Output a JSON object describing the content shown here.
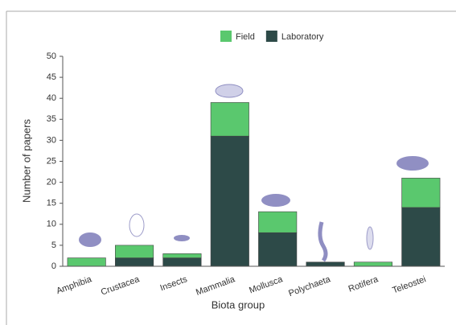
{
  "chart_data": {
    "type": "stacked_bar",
    "categories": [
      "Amphibia",
      "Crustacea",
      "Insects",
      "Mammalia",
      "Mollusca",
      "Polychaeta",
      "Rotifera",
      "Teleostei"
    ],
    "series": [
      {
        "name": "Field",
        "color": "#5ac86e",
        "values": [
          2,
          3,
          1,
          8,
          5,
          0,
          1,
          7
        ]
      },
      {
        "name": "Laboratory",
        "color": "#2d4a48",
        "values": [
          0,
          2,
          2,
          31,
          8,
          1,
          0,
          14
        ]
      }
    ],
    "stack_order": [
      "Laboratory",
      "Field"
    ],
    "x_label": "Biota group",
    "y_label": "Number of papers",
    "ylim": [
      0,
      50
    ],
    "yticks": [
      0,
      5,
      10,
      15,
      20,
      25,
      30,
      35,
      40,
      45,
      50
    ],
    "grid": false,
    "legend": "top"
  }
}
